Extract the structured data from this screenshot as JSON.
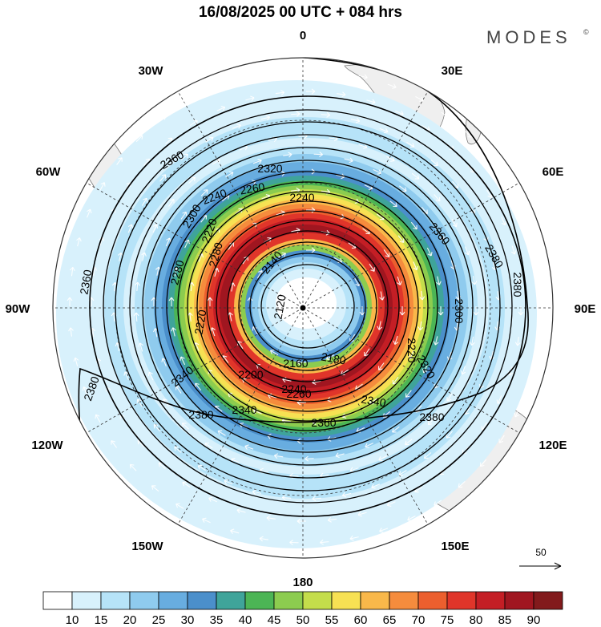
{
  "title": "16/08/2025  00 UTC  + 084 hrs",
  "logo": "MODES",
  "logo_mark": "©",
  "longitude_labels": [
    {
      "id": "lon-0",
      "text": "0"
    },
    {
      "id": "lon-30e",
      "text": "30E"
    },
    {
      "id": "lon-60e",
      "text": "60E"
    },
    {
      "id": "lon-90e",
      "text": "90E"
    },
    {
      "id": "lon-120e",
      "text": "120E"
    },
    {
      "id": "lon-150e",
      "text": "150E"
    },
    {
      "id": "lon-180",
      "text": "180"
    },
    {
      "id": "lon-150w",
      "text": "150W"
    },
    {
      "id": "lon-120w",
      "text": "120W"
    },
    {
      "id": "lon-90w",
      "text": "90W"
    },
    {
      "id": "lon-60w",
      "text": "60W"
    },
    {
      "id": "lon-30w",
      "text": "30W"
    }
  ],
  "contour_labels": [
    "2360",
    "2320",
    "2240",
    "2240",
    "2300",
    "2260",
    "2280",
    "2220",
    "2280",
    "2140",
    "2360",
    "2360",
    "2380",
    "2120",
    "2340",
    "2220",
    "2220",
    "2300",
    "2240",
    "2180",
    "2160",
    "2200",
    "2320",
    "2260",
    "2340",
    "2340",
    "2380",
    "2360",
    "2380",
    "2380",
    "2380"
  ],
  "vector_reference": {
    "value": "50"
  },
  "colorbar": {
    "ticks": [
      "10",
      "15",
      "20",
      "25",
      "30",
      "35",
      "40",
      "45",
      "50",
      "55",
      "60",
      "65",
      "70",
      "75",
      "80",
      "85",
      "90"
    ],
    "colors": [
      "#ffffff",
      "#d8f1fc",
      "#b6e3f8",
      "#8fcbee",
      "#68ade0",
      "#4b8fcb",
      "#3fa49a",
      "#4cb555",
      "#8ccc4f",
      "#c4dd4b",
      "#f7e153",
      "#f9b84a",
      "#f58c3d",
      "#ec5f2e",
      "#e0352a",
      "#c41e25",
      "#a01620",
      "#821a1c"
    ]
  },
  "colors": {
    "land": "#efefef",
    "coast": "#7a7a7a",
    "contour": "#000000",
    "grid": "#333333",
    "vector": "#ffffff"
  }
}
